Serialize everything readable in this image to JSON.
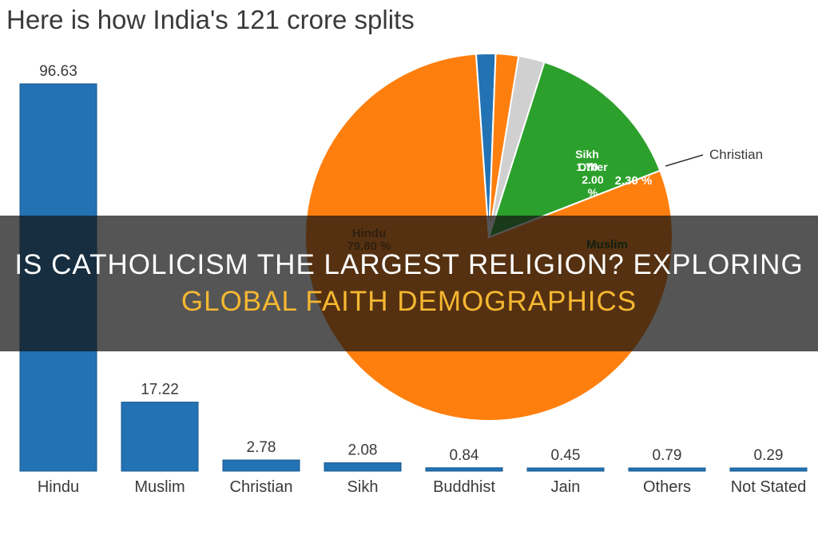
{
  "colors": {
    "bar": "#2272b4",
    "hindu": "#ff7f0e",
    "sikh": "#2272b4",
    "other": "#ff7f0e",
    "christian": "#d0d0d0",
    "muslim": "#2ca02c",
    "label_text": "#3a3a3a",
    "pie_label_on_white": "#ffffff",
    "accent_text": "#f5b731"
  },
  "chart_data": [
    {
      "type": "bar",
      "title": "Here is how India's 121 crore splits",
      "categories": [
        "Hindu",
        "Muslim",
        "Christian",
        "Sikh",
        "Buddhist",
        "Jain",
        "Others",
        "Not Stated"
      ],
      "values": [
        96.63,
        17.22,
        2.78,
        2.08,
        0.84,
        0.45,
        0.79,
        0.29
      ],
      "value_labels": [
        "96.63",
        "17.22",
        "2.78",
        "2.08",
        "0.84",
        "0.45",
        "0.79",
        "0.29"
      ],
      "ylim": [
        0,
        96.63
      ]
    },
    {
      "type": "pie",
      "slices": [
        {
          "name": "Hindu",
          "value": 79.8,
          "label_lines": [
            "Hindu",
            "79.80 %"
          ]
        },
        {
          "name": "Sikh",
          "value": 1.7,
          "label_lines": [
            "Sikh",
            "1.70"
          ]
        },
        {
          "name": "Other",
          "value": 2.0,
          "label_lines": [
            "Other",
            "2.00",
            "%"
          ]
        },
        {
          "name": "Christian",
          "value": 2.3,
          "label_lines": [
            "2.30 %"
          ],
          "callout": "Christian"
        },
        {
          "name": "Muslim",
          "value": 14.2,
          "label_lines": [
            "Muslim"
          ]
        }
      ]
    }
  ],
  "banner": {
    "line1": "IS CATHOLICISM THE LARGEST RELIGION? EXPLORING",
    "line2": "GLOBAL FAITH DEMOGRAPHICS"
  }
}
